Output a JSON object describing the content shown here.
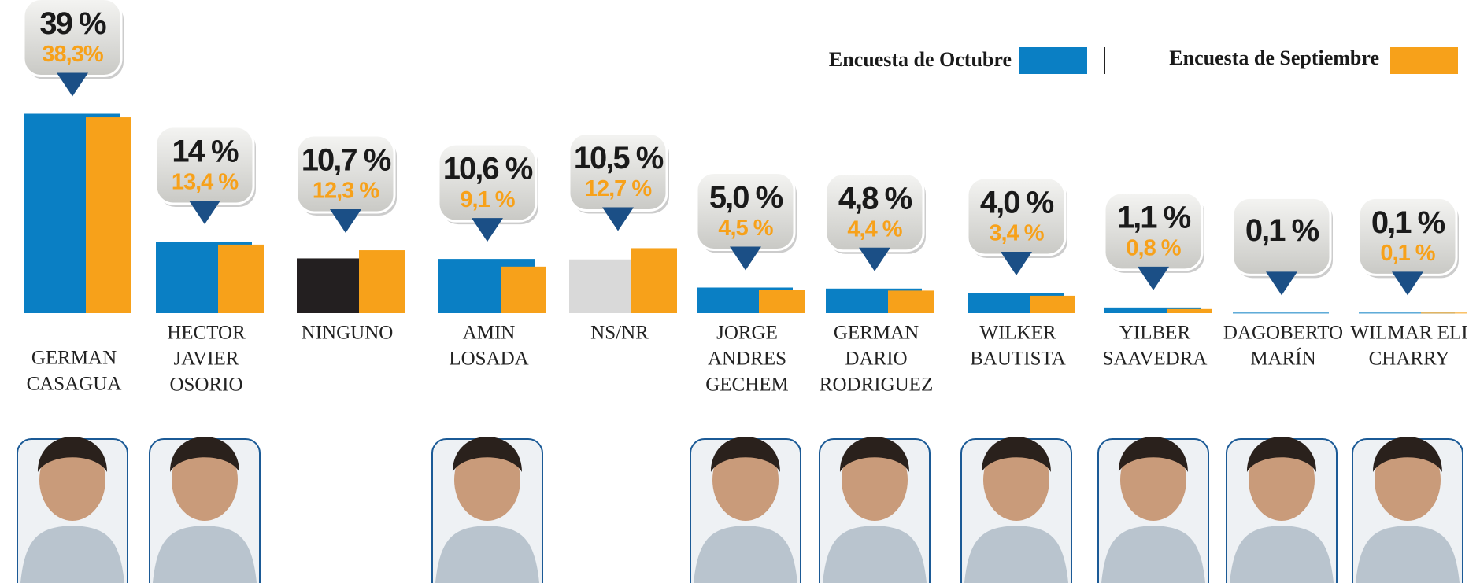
{
  "chart_data": {
    "type": "bar",
    "legend": "top-right",
    "categories": [
      [
        "GERMAN",
        "CASAGUA"
      ],
      [
        "HECTOR",
        "JAVIER",
        "OSORIO"
      ],
      [
        "NINGUNO"
      ],
      [
        "AMIN",
        "LOSADA"
      ],
      [
        "NS/NR"
      ],
      [
        "JORGE",
        "ANDRES",
        "GECHEM"
      ],
      [
        "GERMAN",
        "DARIO",
        "RODRIGUEZ"
      ],
      [
        "WILKER",
        "BAUTISTA"
      ],
      [
        "YILBER",
        "SAAVEDRA"
      ],
      [
        "DAGOBERTO",
        "MARÍN"
      ],
      [
        "WILMAR ELI",
        "CHARRY"
      ]
    ],
    "series": [
      {
        "name": "Encuesta de Octubre",
        "color": "#0a7fc4",
        "colors": [
          "#0a7fc4",
          "#0a7fc4",
          "#231f20",
          "#0a7fc4",
          "#d9d9d9",
          "#0a7fc4",
          "#0a7fc4",
          "#0a7fc4",
          "#0a7fc4",
          "#0a7fc4",
          "#0a7fc4"
        ],
        "values": [
          39,
          14,
          10.7,
          10.6,
          10.5,
          5.0,
          4.8,
          4.0,
          1.1,
          0.1,
          0.1
        ],
        "value_labels": [
          "39 %",
          "14 %",
          "10,7 %",
          "10,6 %",
          "10,5 %",
          "5,0 %",
          "4,8 %",
          "4,0 %",
          "1,1 %",
          "0,1 %",
          "0,1 %"
        ]
      },
      {
        "name": "Encuesta de Septiembre",
        "color": "#f7a11a",
        "values": [
          38.3,
          13.4,
          12.3,
          9.1,
          12.7,
          4.5,
          4.4,
          3.4,
          0.8,
          null,
          0.1
        ],
        "value_labels": [
          "38,3%",
          "13,4 %",
          "12,3 %",
          "9,1 %",
          "12,7 %",
          "4,5 %",
          "4,4 %",
          "3,4 %",
          "0,8 %",
          null,
          "0,1 %"
        ]
      }
    ]
  }
}
